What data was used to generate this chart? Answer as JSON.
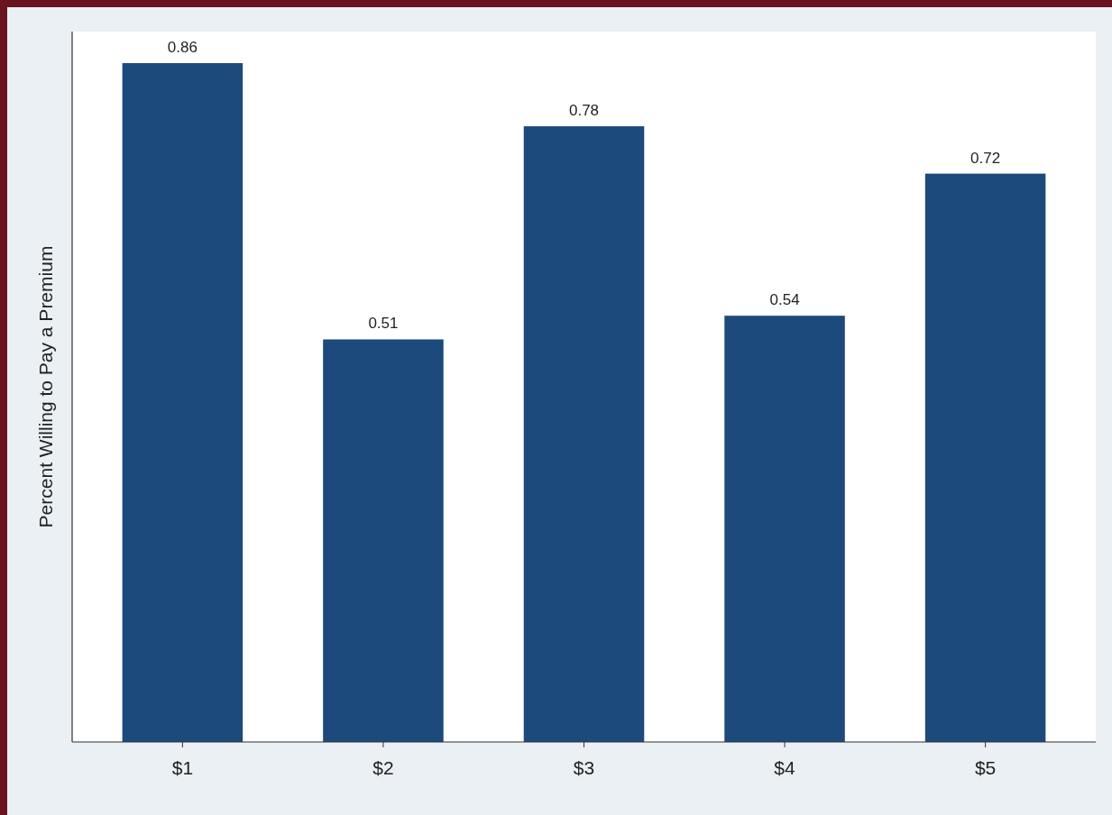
{
  "chart_data": {
    "type": "bar",
    "ylabel": "Percent Willing to Pay a Premium",
    "categories": [
      "$1",
      "$2",
      "$3",
      "$4",
      "$5"
    ],
    "values": [
      0.86,
      0.51,
      0.78,
      0.54,
      0.72
    ],
    "color": "#1c4a7c",
    "ylim": [
      0,
      0.9
    ],
    "data_labels": true,
    "tick_labels": "x"
  }
}
